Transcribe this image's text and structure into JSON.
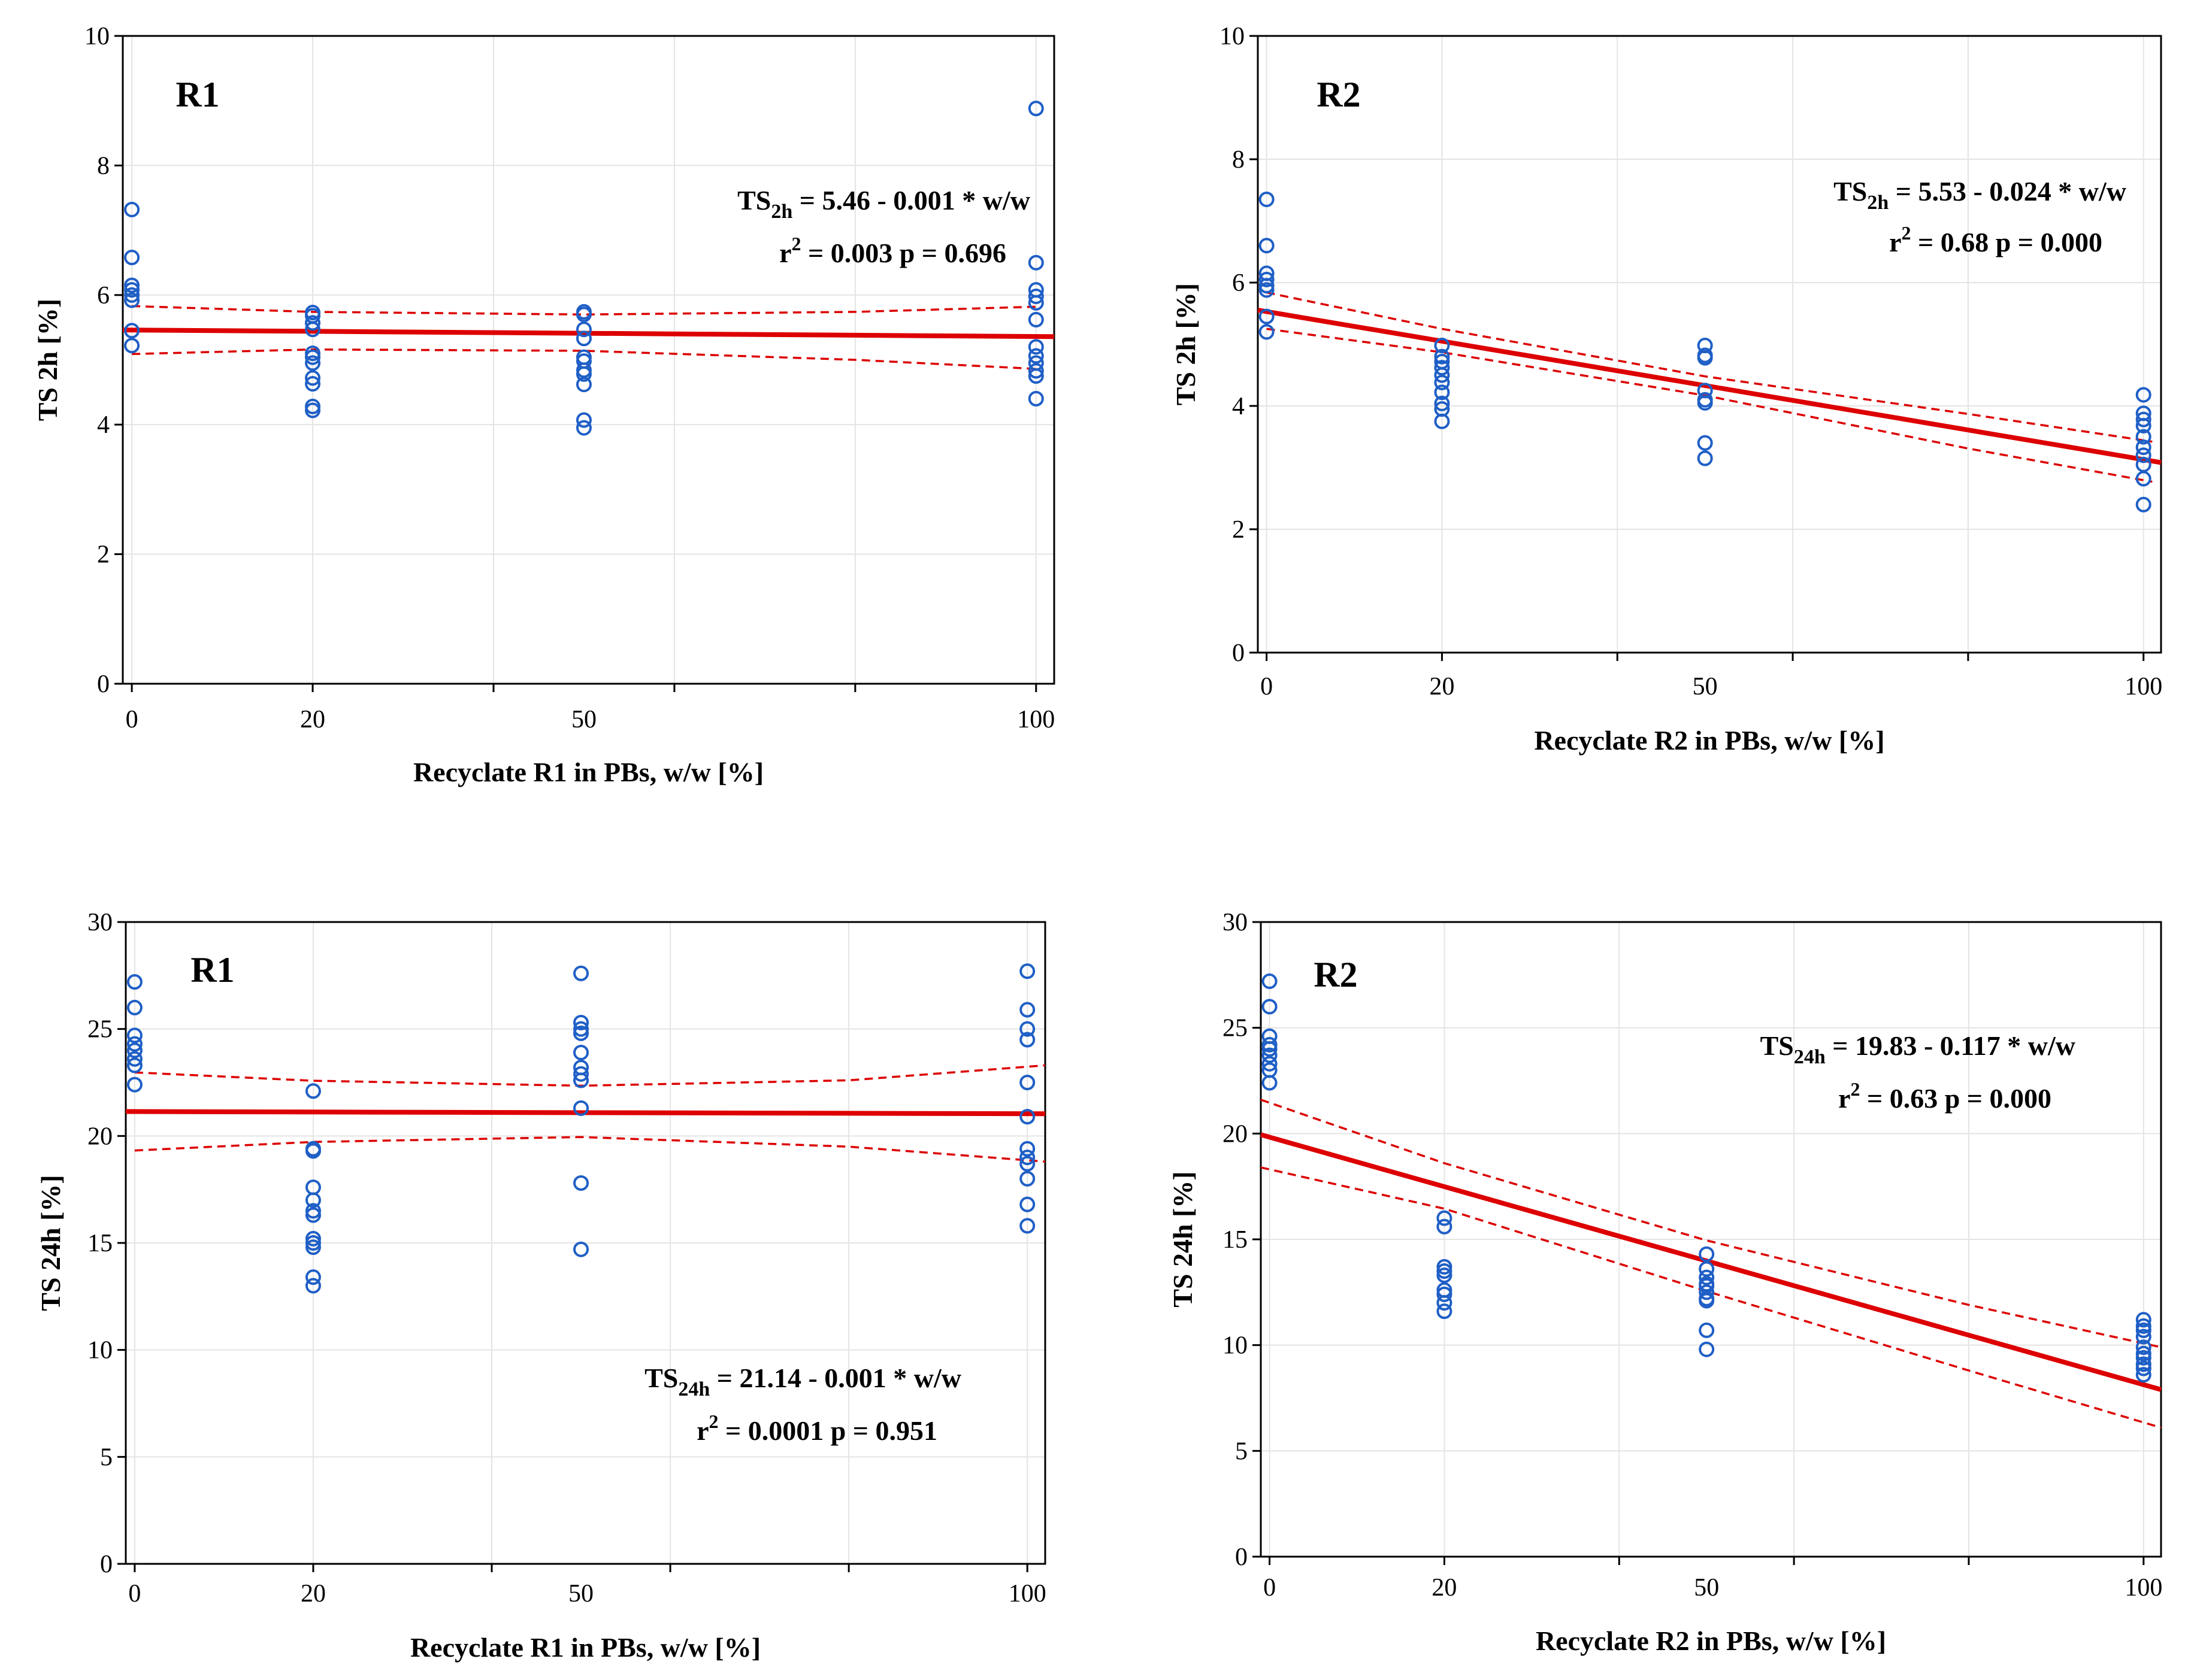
{
  "chart_data": [
    {
      "type": "scatter",
      "panel_label": "R1",
      "xlabel": "Recyclate R1 in PBs, w/w  [%]",
      "ylabel_main": "TS",
      "ylabel_sub": "2h",
      "ylabel_unit": "[%]",
      "ylim": [
        0,
        10
      ],
      "yticks": [
        0,
        2,
        4,
        6,
        8,
        10
      ],
      "xlim": [
        -1,
        102
      ],
      "xtick_labels": [
        "0",
        "20",
        "50",
        "100"
      ],
      "xtick_values": [
        0,
        20,
        50,
        100
      ],
      "xgrid": [
        0,
        20,
        40,
        60,
        80,
        100
      ],
      "equation": {
        "lhs": "TS",
        "sub": "2h",
        "rhs": " = 5.46 - 0.001 * w/w",
        "r2_label": "r",
        "r2_sup": "2",
        "r2_value": " = 0.003",
        "p_text": "p = 0.696"
      },
      "fit": {
        "intercept": 5.46,
        "slope": -0.001
      },
      "ci_upper": [
        [
          0,
          5.83
        ],
        [
          20,
          5.74
        ],
        [
          50,
          5.7
        ],
        [
          80,
          5.74
        ],
        [
          100,
          5.82
        ]
      ],
      "ci_lower": [
        [
          0,
          5.09
        ],
        [
          20,
          5.16
        ],
        [
          50,
          5.14
        ],
        [
          80,
          5.0
        ],
        [
          100,
          4.86
        ]
      ],
      "points": [
        {
          "x": 0,
          "y": [
            7.32,
            6.58,
            6.15,
            6.08,
            6.0,
            5.92,
            5.45,
            5.22
          ]
        },
        {
          "x": 20,
          "y": [
            5.73,
            5.68,
            5.57,
            5.47,
            5.1,
            5.04,
            4.95,
            4.72,
            4.63,
            4.28,
            4.22
          ]
        },
        {
          "x": 50,
          "y": [
            5.74,
            5.7,
            5.47,
            5.33,
            5.04,
            4.98,
            4.84,
            4.78,
            4.62,
            4.07,
            3.95
          ]
        },
        {
          "x": 100,
          "y": [
            8.88,
            6.5,
            6.08,
            5.98,
            5.88,
            5.62,
            5.2,
            5.06,
            4.95,
            4.83,
            4.75,
            4.4
          ]
        }
      ]
    },
    {
      "type": "scatter",
      "panel_label": "R2",
      "xlabel": "Recyclate R2 in PBs, w/w  [%]",
      "ylabel_main": "TS",
      "ylabel_sub": "2h",
      "ylabel_unit": "[%]",
      "ylim": [
        0,
        10
      ],
      "yticks": [
        0,
        2,
        4,
        6,
        8,
        10
      ],
      "xlim": [
        -1,
        102
      ],
      "xtick_labels": [
        "0",
        "20",
        "50",
        "100"
      ],
      "xtick_values": [
        0,
        20,
        50,
        100
      ],
      "xgrid": [
        0,
        20,
        40,
        60,
        80,
        100
      ],
      "equation": {
        "lhs": "TS",
        "sub": "2h",
        "rhs": " = 5.53 - 0.024 * w/w",
        "r2_label": "r",
        "r2_sup": "2",
        "r2_value": " = 0.68",
        "p_text": "p = 0.000"
      },
      "fit": {
        "intercept": 5.53,
        "slope": -0.024
      },
      "ci_upper": [
        [
          0,
          5.84
        ],
        [
          20,
          5.25
        ],
        [
          50,
          4.48
        ],
        [
          80,
          3.87
        ],
        [
          101,
          3.42
        ]
      ],
      "ci_lower": [
        [
          0,
          5.25
        ],
        [
          20,
          4.87
        ],
        [
          50,
          4.17
        ],
        [
          80,
          3.31
        ],
        [
          101,
          2.77
        ]
      ],
      "points": [
        {
          "x": 0,
          "y": [
            7.35,
            6.6,
            6.15,
            6.05,
            5.95,
            5.88,
            5.45,
            5.2
          ]
        },
        {
          "x": 20,
          "y": [
            4.98,
            4.8,
            4.72,
            4.62,
            4.5,
            4.38,
            4.22,
            4.04,
            3.95,
            3.75
          ]
        },
        {
          "x": 50,
          "y": [
            4.98,
            4.82,
            4.78,
            4.25,
            4.1,
            4.05,
            3.4,
            3.15
          ]
        },
        {
          "x": 100,
          "y": [
            4.18,
            3.88,
            3.78,
            3.68,
            3.5,
            3.33,
            3.2,
            3.05,
            2.82,
            2.4
          ]
        }
      ]
    },
    {
      "type": "scatter",
      "panel_label": "R1",
      "xlabel": "Recyclate R1 in PBs, w/w  [%]",
      "ylabel_main": "TS",
      "ylabel_sub": "24h",
      "ylabel_unit": "[%]",
      "ylim": [
        0,
        30
      ],
      "yticks": [
        0,
        5,
        10,
        15,
        20,
        25,
        30
      ],
      "xlim": [
        -1,
        102
      ],
      "xtick_labels": [
        "0",
        "20",
        "50",
        "100"
      ],
      "xtick_values": [
        0,
        20,
        50,
        100
      ],
      "xgrid": [
        0,
        20,
        40,
        60,
        80,
        100
      ],
      "equation": {
        "lhs": "TS",
        "sub": "24h",
        "rhs": " = 21.14 - 0.001 * w/w",
        "r2_label": "r",
        "r2_sup": "2",
        "r2_value": " = 0.0001",
        "p_text": "p = 0.951"
      },
      "fit": {
        "intercept": 21.14,
        "slope": -0.001
      },
      "ci_upper": [
        [
          0,
          22.97
        ],
        [
          20,
          22.58
        ],
        [
          50,
          22.35
        ],
        [
          80,
          22.6
        ],
        [
          102,
          23.3
        ]
      ],
      "ci_lower": [
        [
          0,
          19.32
        ],
        [
          20,
          19.72
        ],
        [
          50,
          19.95
        ],
        [
          80,
          19.5
        ],
        [
          102,
          18.8
        ]
      ],
      "points": [
        {
          "x": 0,
          "y": [
            27.2,
            26.0,
            24.7,
            24.3,
            24.0,
            23.6,
            23.3,
            22.4
          ]
        },
        {
          "x": 20,
          "y": [
            22.1,
            19.4,
            19.3,
            17.6,
            17.0,
            16.5,
            16.3,
            15.2,
            15.0,
            14.8,
            13.4,
            13.0
          ]
        },
        {
          "x": 50,
          "y": [
            27.6,
            25.3,
            25.0,
            24.8,
            23.9,
            23.2,
            22.9,
            22.6,
            21.3,
            17.8,
            14.7
          ]
        },
        {
          "x": 100,
          "y": [
            27.7,
            25.9,
            25.0,
            24.5,
            22.5,
            20.9,
            19.4,
            19.0,
            18.7,
            18.0,
            16.8,
            15.8
          ]
        }
      ]
    },
    {
      "type": "scatter",
      "panel_label": "R2",
      "xlabel": "Recyclate R2 in PBs, w/w  [%]",
      "ylabel_main": "TS",
      "ylabel_sub": "24h",
      "ylabel_unit": "[%]",
      "ylim": [
        0,
        30
      ],
      "yticks": [
        0,
        5,
        10,
        15,
        20,
        25,
        30
      ],
      "xlim": [
        -1,
        102
      ],
      "xtick_labels": [
        "0",
        "20",
        "50",
        "100"
      ],
      "xtick_values": [
        0,
        20,
        50,
        100
      ],
      "xgrid": [
        0,
        20,
        40,
        60,
        80,
        100
      ],
      "equation": {
        "lhs": "TS",
        "sub": "24h",
        "rhs": " = 19.83 - 0.117 * w/w",
        "r2_label": "r",
        "r2_sup": "2",
        "r2_value": " = 0.63",
        "p_text": "p = 0.000"
      },
      "fit": {
        "intercept": 19.83,
        "slope": -0.117
      },
      "ci_upper": [
        [
          -1,
          21.6
        ],
        [
          20,
          18.6
        ],
        [
          50,
          14.95
        ],
        [
          80,
          11.9
        ],
        [
          102,
          9.9
        ]
      ],
      "ci_lower": [
        [
          -1,
          18.4
        ],
        [
          20,
          16.45
        ],
        [
          50,
          12.55
        ],
        [
          80,
          8.8
        ],
        [
          102,
          6.1
        ]
      ],
      "points": [
        {
          "x": 0,
          "y": [
            27.2,
            26.0,
            24.6,
            24.2,
            24.0,
            23.7,
            23.3,
            23.0,
            22.4
          ]
        },
        {
          "x": 20,
          "y": [
            16.0,
            15.6,
            13.7,
            13.5,
            13.3,
            12.6,
            12.4,
            12.0,
            11.6
          ]
        },
        {
          "x": 50,
          "y": [
            14.3,
            13.6,
            13.2,
            12.9,
            12.8,
            12.5,
            12.2,
            12.1,
            10.7,
            9.8
          ]
        },
        {
          "x": 100,
          "y": [
            11.2,
            10.9,
            10.7,
            10.4,
            9.9,
            9.6,
            9.4,
            9.1,
            8.9,
            8.6
          ]
        }
      ]
    }
  ]
}
